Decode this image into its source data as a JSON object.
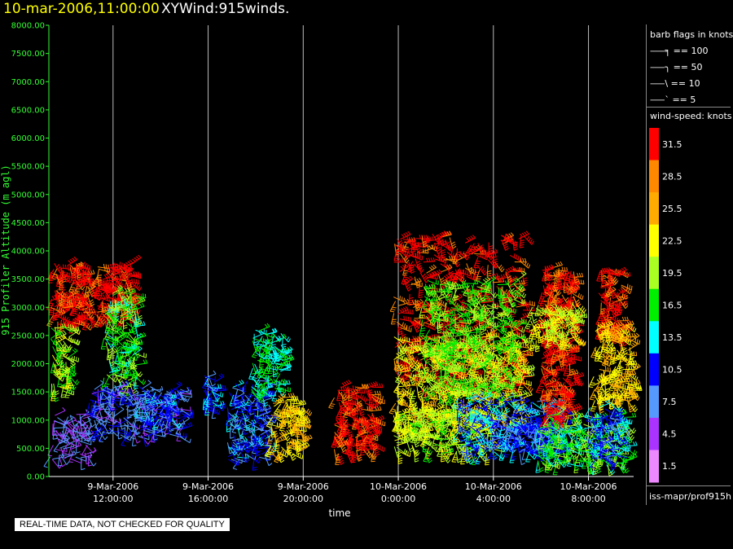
{
  "header": {
    "datetime": "10-mar-2006,11:00:00",
    "title": "XYWind:915winds."
  },
  "notice": "REAL-TIME DATA, NOT CHECKED FOR QUALITY",
  "legend": {
    "flags_title": "barb flags in knots",
    "flags": [
      {
        "label": "== 100",
        "value": 100
      },
      {
        "label": "== 50",
        "value": 50
      },
      {
        "label": "== 10",
        "value": 10
      },
      {
        "label": "== 5",
        "value": 5
      }
    ],
    "speed_title": "wind-speed: knots",
    "source": "iss-mapr/prof915h"
  },
  "colors": {
    "y_axis": "#33ff33",
    "background": "#000000",
    "grid": "#ffffff"
  },
  "chart_data": {
    "type": "scatter",
    "title": "XYWind:915winds.",
    "xlabel": "time",
    "ylabel": "915 Profiler Altitude (m agl)",
    "ylim": [
      0,
      8000
    ],
    "yticks": [
      "0.00",
      "500.00",
      "1000.00",
      "1500.00",
      "2000.00",
      "2500.00",
      "3000.00",
      "3500.00",
      "4000.00",
      "4500.00",
      "5000.00",
      "5500.00",
      "6000.00",
      "6500.00",
      "7000.00",
      "7500.00",
      "8000.00"
    ],
    "x_hours_range": [
      9.3,
      33.9
    ],
    "xticks": [
      {
        "hour": 12,
        "line1": "9-Mar-2006",
        "line2": "12:00:00"
      },
      {
        "hour": 16,
        "line1": "9-Mar-2006",
        "line2": "16:00:00"
      },
      {
        "hour": 20,
        "line1": "9-Mar-2006",
        "line2": "20:00:00"
      },
      {
        "hour": 24,
        "line1": "10-Mar-2006",
        "line2": "0:00:00"
      },
      {
        "hour": 28,
        "line1": "10-Mar-2006",
        "line2": "4:00:00"
      },
      {
        "hour": 32,
        "line1": "10-Mar-2006",
        "line2": "8:00:00"
      }
    ],
    "grid": true,
    "colorbar": {
      "labels": [
        "31.5",
        "28.5",
        "25.5",
        "22.5",
        "19.5",
        "16.5",
        "13.5",
        "10.5",
        "7.5",
        "4.5",
        "1.5"
      ],
      "colors": [
        "#ff0000",
        "#ff8800",
        "#ffaa00",
        "#ffff00",
        "#aaff22",
        "#00ee00",
        "#00ffff",
        "#0000ff",
        "#5599ff",
        "#aa33ff",
        "#ee88ff"
      ]
    },
    "clusters": [
      {
        "time_start": 9.35,
        "time_end": 11.1,
        "alt_start": 2700,
        "alt_end": 3800,
        "speed": 31
      },
      {
        "time_start": 11.3,
        "time_end": 12.8,
        "alt_start": 2800,
        "alt_end": 3800,
        "speed": 31
      },
      {
        "time_start": 9.35,
        "time_end": 10.2,
        "alt_start": 1500,
        "alt_end": 2700,
        "speed": 19
      },
      {
        "time_start": 11.6,
        "time_end": 13.0,
        "alt_start": 1600,
        "alt_end": 3300,
        "speed": 17
      },
      {
        "time_start": 9.35,
        "time_end": 11.0,
        "alt_start": 300,
        "alt_end": 1100,
        "speed": 6
      },
      {
        "time_start": 11.0,
        "time_end": 15.0,
        "alt_start": 700,
        "alt_end": 1600,
        "speed": 8
      },
      {
        "time_start": 13.0,
        "time_end": 14.5,
        "alt_start": 1000,
        "alt_end": 1500,
        "speed": 10
      },
      {
        "time_start": 15.8,
        "time_end": 16.3,
        "alt_start": 1200,
        "alt_end": 1800,
        "speed": 11
      },
      {
        "time_start": 16.8,
        "time_end": 18.5,
        "alt_start": 300,
        "alt_end": 1700,
        "speed": 10
      },
      {
        "time_start": 17.8,
        "time_end": 19.2,
        "alt_start": 1500,
        "alt_end": 2600,
        "speed": 15
      },
      {
        "time_start": 18.6,
        "time_end": 20.0,
        "alt_start": 400,
        "alt_end": 1400,
        "speed": 24
      },
      {
        "time_start": 21.3,
        "time_end": 23.0,
        "alt_start": 400,
        "alt_end": 1600,
        "speed": 31
      },
      {
        "time_start": 23.8,
        "time_end": 29.3,
        "alt_start": 1500,
        "alt_end": 4300,
        "speed": 31
      },
      {
        "time_start": 23.8,
        "time_end": 29.3,
        "alt_start": 900,
        "alt_end": 2500,
        "speed": 23
      },
      {
        "time_start": 25.0,
        "time_end": 29.0,
        "alt_start": 1400,
        "alt_end": 3500,
        "speed": 18
      },
      {
        "time_start": 23.8,
        "time_end": 28.0,
        "alt_start": 400,
        "alt_end": 1200,
        "speed": 20
      },
      {
        "time_start": 26.5,
        "time_end": 31.0,
        "alt_start": 400,
        "alt_end": 1400,
        "speed": 11
      },
      {
        "time_start": 28.5,
        "time_end": 30.5,
        "alt_start": 600,
        "alt_end": 1100,
        "speed": 9
      },
      {
        "time_start": 30.0,
        "time_end": 31.4,
        "alt_start": 1000,
        "alt_end": 3700,
        "speed": 31
      },
      {
        "time_start": 29.5,
        "time_end": 31.5,
        "alt_start": 2400,
        "alt_end": 3100,
        "speed": 21
      },
      {
        "time_start": 29.8,
        "time_end": 33.6,
        "alt_start": 200,
        "alt_end": 1100,
        "speed": 17
      },
      {
        "time_start": 32.4,
        "time_end": 33.4,
        "alt_start": 2500,
        "alt_end": 3700,
        "speed": 31
      },
      {
        "time_start": 32.2,
        "time_end": 33.8,
        "alt_start": 1300,
        "alt_end": 2700,
        "speed": 24
      },
      {
        "time_start": 32.0,
        "time_end": 33.4,
        "alt_start": 300,
        "alt_end": 1300,
        "speed": 11
      }
    ]
  }
}
